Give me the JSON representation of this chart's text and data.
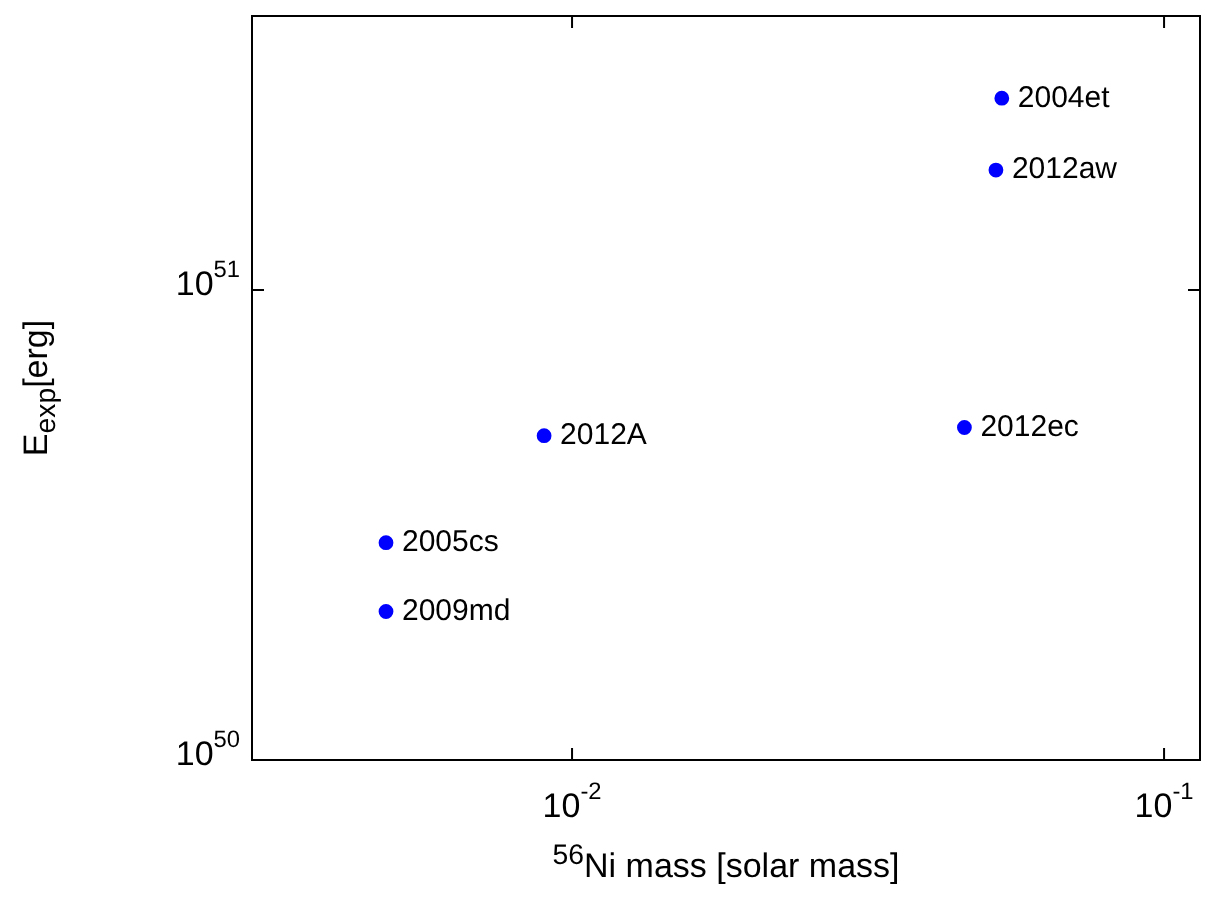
{
  "chart_data": {
    "type": "scatter",
    "xlabel": "$^{56}$Ni mass [solar mass]",
    "ylabel": "E$_{exp}$[erg]",
    "series": [
      {
        "color": "#0000ff",
        "x": [
          0.0532,
          0.052,
          0.00897,
          0.046,
          0.00485,
          0.00485
        ],
        "values": [
          2.56e+51,
          1.8e+51,
          4.9e+50,
          5.1e+50,
          2.9e+50,
          2.07e+50
        ]
      }
    ],
    "annotations": [
      {
        "text": "2004et",
        "x": 0.0532,
        "y": 2.56e+51
      },
      {
        "text": "2012aw",
        "x": 0.052,
        "y": 1.8e+51
      },
      {
        "text": "2012A",
        "x": 0.00897,
        "y": 4.9e+50
      },
      {
        "text": "2012ec",
        "x": 0.046,
        "y": 5.1e+50
      },
      {
        "text": "2005cs",
        "x": 0.00485,
        "y": 2.9e+50
      },
      {
        "text": "2009md",
        "x": 0.00485,
        "y": 2.07e+50
      }
    ],
    "log": "xy",
    "xlim": [
      0.00288,
      0.115
    ],
    "ylim": [
      1e+50,
      3.83e+51
    ],
    "xticks": [
      {
        "value": 0.01,
        "label": "10$^{-2}$"
      },
      {
        "value": 0.1,
        "label": "10$^{-1}$"
      }
    ],
    "yticks": [
      {
        "value": 1e+50,
        "label": "10$^{50}$"
      },
      {
        "value": 1e+51,
        "label": "10$^{51}$"
      }
    ],
    "marker": "circle",
    "grid": false,
    "legend": false
  }
}
